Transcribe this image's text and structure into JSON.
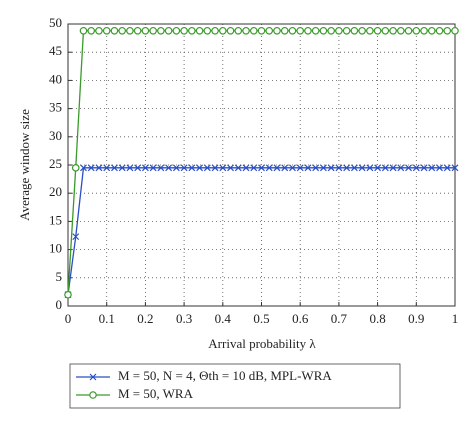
{
  "chart_data": {
    "type": "line",
    "xlabel": "Arrival probability λ",
    "ylabel": "Average window size",
    "x": [
      0,
      0.02,
      0.04,
      0.06,
      0.08,
      0.1,
      0.12,
      0.14,
      0.16,
      0.18,
      0.2,
      0.22,
      0.24,
      0.26,
      0.28,
      0.3,
      0.32,
      0.34,
      0.36,
      0.38,
      0.4,
      0.42,
      0.44,
      0.46,
      0.48,
      0.5,
      0.52,
      0.54,
      0.56,
      0.58,
      0.6,
      0.62,
      0.64,
      0.66,
      0.68,
      0.7,
      0.72,
      0.74,
      0.76,
      0.78,
      0.8,
      0.82,
      0.84,
      0.86,
      0.88,
      0.9,
      0.92,
      0.94,
      0.96,
      0.98,
      1
    ],
    "series": [
      {
        "name": "M = 50, N = 4, Θth = 10 dB, MPL-WRA",
        "color": "#2b4fc4",
        "marker": "x",
        "values": [
          2,
          12.3,
          24.5,
          24.5,
          24.5,
          24.5,
          24.5,
          24.5,
          24.5,
          24.5,
          24.5,
          24.5,
          24.5,
          24.5,
          24.5,
          24.5,
          24.5,
          24.5,
          24.5,
          24.5,
          24.5,
          24.5,
          24.5,
          24.5,
          24.5,
          24.5,
          24.5,
          24.5,
          24.5,
          24.5,
          24.5,
          24.5,
          24.5,
          24.5,
          24.5,
          24.5,
          24.5,
          24.5,
          24.5,
          24.5,
          24.5,
          24.5,
          24.5,
          24.5,
          24.5,
          24.5,
          24.5,
          24.5,
          24.5,
          24.5,
          24.5
        ]
      },
      {
        "name": "M = 50, WRA",
        "color": "#3a9a2a",
        "marker": "o",
        "values": [
          2,
          24.5,
          48.8,
          48.8,
          48.8,
          48.8,
          48.8,
          48.8,
          48.8,
          48.8,
          48.8,
          48.8,
          48.8,
          48.8,
          48.8,
          48.8,
          48.8,
          48.8,
          48.8,
          48.8,
          48.8,
          48.8,
          48.8,
          48.8,
          48.8,
          48.8,
          48.8,
          48.8,
          48.8,
          48.8,
          48.8,
          48.8,
          48.8,
          48.8,
          48.8,
          48.8,
          48.8,
          48.8,
          48.8,
          48.8,
          48.8,
          48.8,
          48.8,
          48.8,
          48.8,
          48.8,
          48.8,
          48.8,
          48.8,
          48.8,
          48.8
        ]
      }
    ],
    "xlim": [
      0,
      1
    ],
    "xticks": [
      0,
      0.1,
      0.2,
      0.3,
      0.4,
      0.5,
      0.6,
      0.7,
      0.8,
      0.9,
      1
    ],
    "ylim": [
      0,
      50
    ],
    "yticks": [
      0,
      5,
      10,
      15,
      20,
      25,
      30,
      35,
      40,
      45,
      50
    ],
    "grid": true
  }
}
